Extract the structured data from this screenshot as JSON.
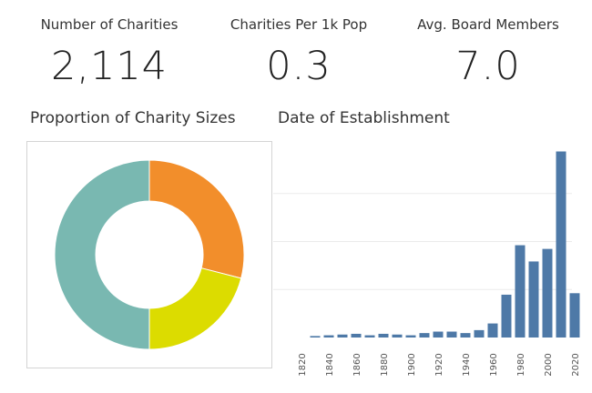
{
  "kpis": [
    {
      "label": "Number of Charities",
      "value": "2,114"
    },
    {
      "label": "Charities Per 1k Pop",
      "value": "0.3"
    },
    {
      "label": "Avg. Board Members",
      "value": "7.0"
    }
  ],
  "colors": {
    "orange": "#f28e2b",
    "yellow": "#dcdc00",
    "teal": "#79b8b1",
    "bar": "#4e79a7",
    "grid": "#ebebeb"
  },
  "chart_data": [
    {
      "type": "pie",
      "title": "Proportion of Charity Sizes",
      "variant": "donut",
      "slices": [
        {
          "value": 0.29,
          "color": "#f28e2b"
        },
        {
          "value": 0.21,
          "color": "#dcdc00"
        },
        {
          "value": 0.5,
          "color": "#79b8b1"
        }
      ]
    },
    {
      "type": "bar",
      "title": "Date of Establishment",
      "xlabel": "",
      "ylabel": "",
      "grid": true,
      "x": [
        1820,
        1830,
        1840,
        1850,
        1860,
        1870,
        1880,
        1890,
        1900,
        1910,
        1920,
        1930,
        1940,
        1950,
        1960,
        1970,
        1980,
        1990,
        2000,
        2010,
        2020
      ],
      "values": [
        0,
        2,
        3,
        4,
        5,
        3,
        5,
        4,
        3,
        6,
        8,
        8,
        6,
        10,
        19,
        58,
        125,
        103,
        120,
        252,
        60
      ],
      "x_tick_labels": [
        "1820",
        "1840",
        "1860",
        "1880",
        "1900",
        "1920",
        "1940",
        "1960",
        "1980",
        "2000",
        "2020"
      ],
      "ylim": [
        0,
        260
      ]
    }
  ]
}
